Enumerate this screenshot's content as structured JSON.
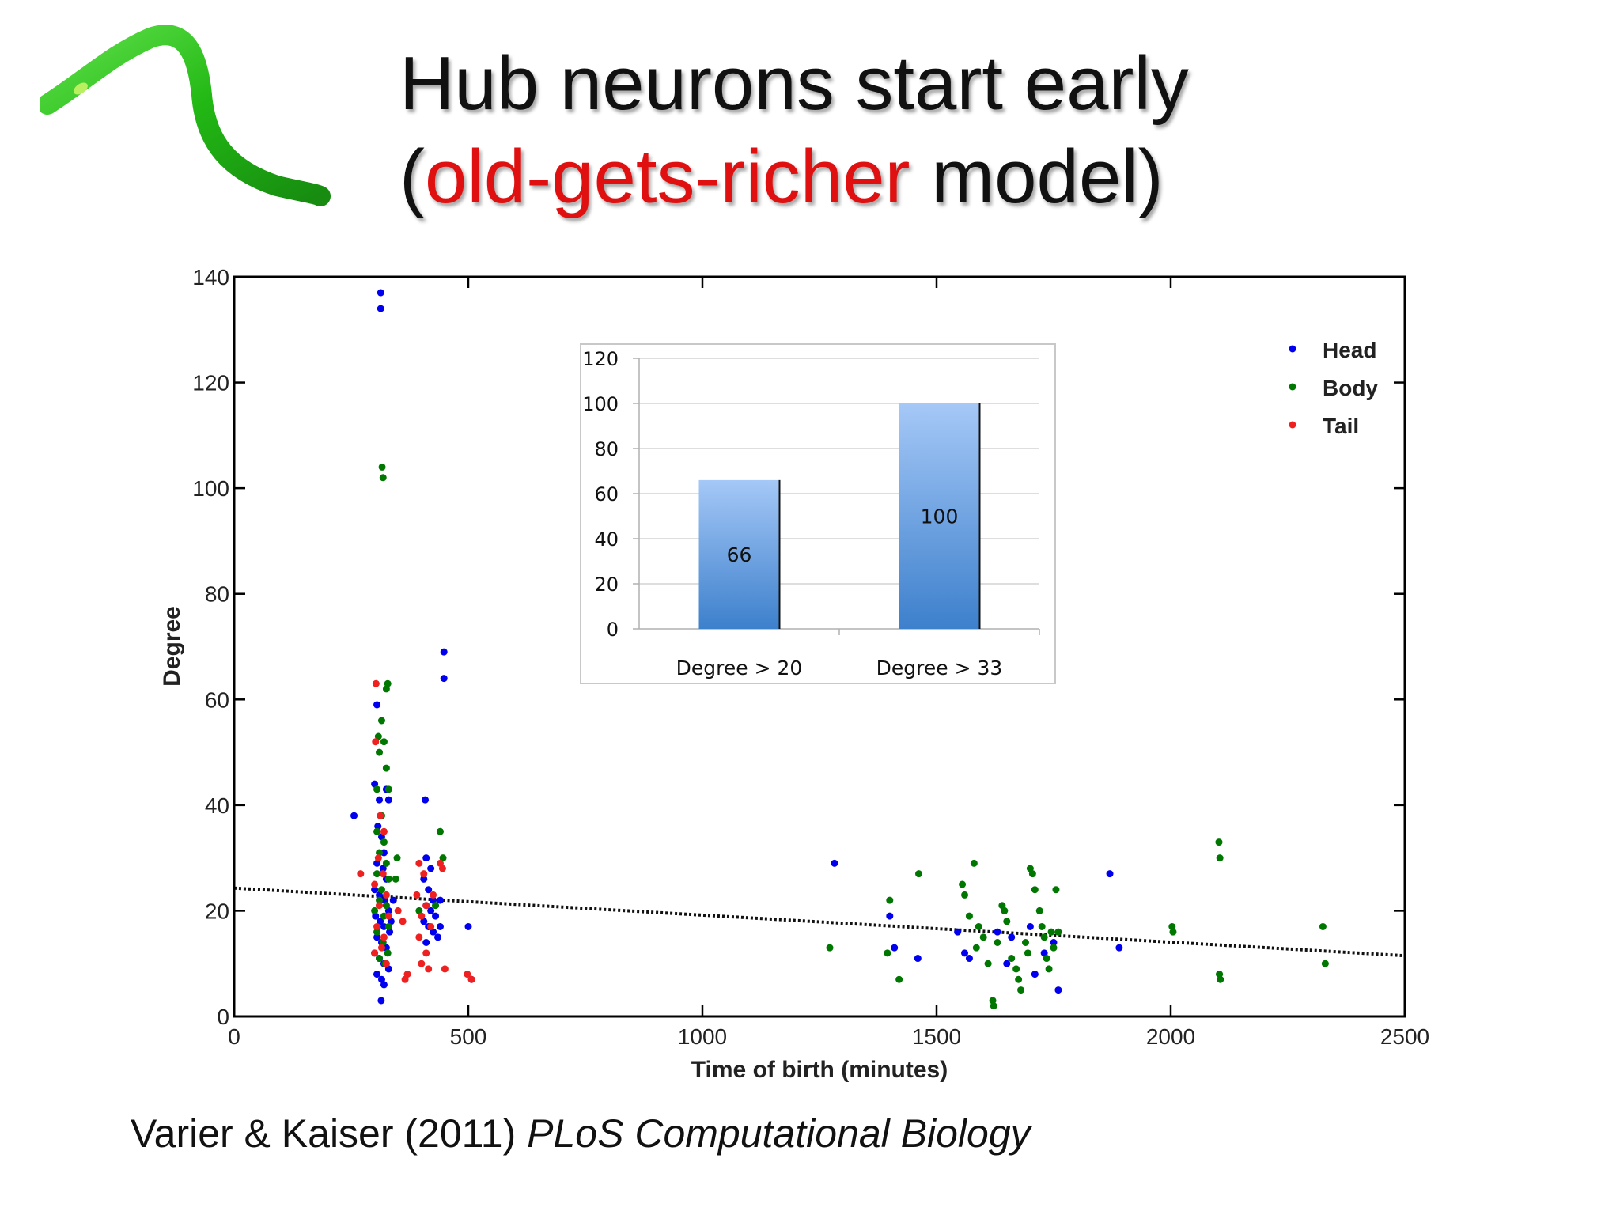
{
  "slide": {
    "title_line1": "Hub neurons start early",
    "title_line2_open": "(",
    "title_line2_highlight": "old-gets-richer",
    "title_line2_rest": " model)",
    "citation_authors": "Varier & Kaiser (2011) ",
    "citation_journal": "PLoS Computational Biology",
    "highlight_color": "#e01010"
  },
  "chart_data": [
    {
      "type": "scatter",
      "xlabel": "Time of birth (minutes)",
      "ylabel": "Degree",
      "xlim": [
        0,
        2500
      ],
      "ylim": [
        0,
        140
      ],
      "xticks": [
        0,
        500,
        1000,
        1500,
        2000,
        2500
      ],
      "yticks": [
        0,
        20,
        40,
        60,
        80,
        100,
        120,
        140
      ],
      "grid": false,
      "legend_position": "top-right",
      "trendline": {
        "style": "dotted",
        "x": [
          0,
          2500
        ],
        "y": [
          24.3,
          11.5
        ]
      },
      "series": [
        {
          "name": "Head",
          "color": "#0000ee",
          "points": [
            [
              313,
              137
            ],
            [
              313,
              134
            ],
            [
              256,
              38
            ],
            [
              305,
              59
            ],
            [
              300,
              44
            ],
            [
              310,
              41
            ],
            [
              325,
              43
            ],
            [
              330,
              41
            ],
            [
              307,
              36
            ],
            [
              315,
              34
            ],
            [
              320,
              31
            ],
            [
              305,
              29
            ],
            [
              318,
              28
            ],
            [
              325,
              26
            ],
            [
              300,
              24
            ],
            [
              310,
              23
            ],
            [
              322,
              22
            ],
            [
              330,
              20
            ],
            [
              302,
              19
            ],
            [
              312,
              18
            ],
            [
              320,
              17
            ],
            [
              332,
              16
            ],
            [
              305,
              15
            ],
            [
              315,
              14
            ],
            [
              325,
              13
            ],
            [
              300,
              12
            ],
            [
              310,
              11
            ],
            [
              320,
              10
            ],
            [
              330,
              9
            ],
            [
              305,
              8
            ],
            [
              315,
              7
            ],
            [
              320,
              6
            ],
            [
              314,
              3
            ],
            [
              340,
              22
            ],
            [
              335,
              18
            ],
            [
              408,
              41
            ],
            [
              448,
              69
            ],
            [
              448,
              64
            ],
            [
              410,
              30
            ],
            [
              420,
              28
            ],
            [
              405,
              26
            ],
            [
              415,
              24
            ],
            [
              425,
              22
            ],
            [
              410,
              21
            ],
            [
              420,
              20
            ],
            [
              430,
              19
            ],
            [
              405,
              18
            ],
            [
              415,
              17
            ],
            [
              425,
              16
            ],
            [
              435,
              15
            ],
            [
              410,
              14
            ],
            [
              440,
              17
            ],
            [
              440,
              22
            ],
            [
              500,
              17
            ],
            [
              507,
              7
            ],
            [
              1282,
              29
            ],
            [
              1400,
              19
            ],
            [
              1410,
              13
            ],
            [
              1460,
              11
            ],
            [
              1545,
              16
            ],
            [
              1560,
              12
            ],
            [
              1570,
              11
            ],
            [
              1630,
              16
            ],
            [
              1650,
              10
            ],
            [
              1660,
              15
            ],
            [
              1700,
              17
            ],
            [
              1710,
              8
            ],
            [
              1730,
              12
            ],
            [
              1750,
              14
            ],
            [
              1760,
              5
            ],
            [
              1870,
              27
            ],
            [
              1890,
              13
            ]
          ]
        },
        {
          "name": "Body",
          "color": "#007700",
          "points": [
            [
              316,
              104
            ],
            [
              318,
              102
            ],
            [
              328,
              63
            ],
            [
              325,
              62
            ],
            [
              315,
              56
            ],
            [
              308,
              53
            ],
            [
              320,
              52
            ],
            [
              310,
              50
            ],
            [
              325,
              47
            ],
            [
              305,
              43
            ],
            [
              330,
              43
            ],
            [
              315,
              38
            ],
            [
              305,
              35
            ],
            [
              320,
              33
            ],
            [
              310,
              31
            ],
            [
              325,
              29
            ],
            [
              305,
              27
            ],
            [
              330,
              26
            ],
            [
              315,
              24
            ],
            [
              310,
              22
            ],
            [
              325,
              21
            ],
            [
              300,
              20
            ],
            [
              320,
              19
            ],
            [
              330,
              17
            ],
            [
              305,
              16
            ],
            [
              318,
              14
            ],
            [
              328,
              12
            ],
            [
              310,
              11
            ],
            [
              322,
              10
            ],
            [
              348,
              30
            ],
            [
              345,
              26
            ],
            [
              440,
              35
            ],
            [
              446,
              30
            ],
            [
              395,
              20
            ],
            [
              430,
              21
            ],
            [
              1272,
              13
            ],
            [
              1395,
              12
            ],
            [
              1400,
              22
            ],
            [
              1420,
              7
            ],
            [
              1462,
              27
            ],
            [
              1555,
              25
            ],
            [
              1560,
              23
            ],
            [
              1570,
              19
            ],
            [
              1580,
              29
            ],
            [
              1585,
              13
            ],
            [
              1590,
              17
            ],
            [
              1600,
              15
            ],
            [
              1610,
              10
            ],
            [
              1620,
              3
            ],
            [
              1622,
              2
            ],
            [
              1630,
              14
            ],
            [
              1640,
              21
            ],
            [
              1645,
              20
            ],
            [
              1650,
              18
            ],
            [
              1660,
              11
            ],
            [
              1670,
              9
            ],
            [
              1675,
              7
            ],
            [
              1680,
              5
            ],
            [
              1690,
              14
            ],
            [
              1695,
              12
            ],
            [
              1700,
              28
            ],
            [
              1705,
              27
            ],
            [
              1710,
              24
            ],
            [
              1720,
              20
            ],
            [
              1725,
              17
            ],
            [
              1730,
              15
            ],
            [
              1735,
              11
            ],
            [
              1740,
              9
            ],
            [
              1745,
              16
            ],
            [
              1750,
              13
            ],
            [
              1755,
              24
            ],
            [
              1760,
              16
            ],
            [
              2003,
              17
            ],
            [
              2005,
              16
            ],
            [
              2103,
              33
            ],
            [
              2105,
              30
            ],
            [
              2104,
              8
            ],
            [
              2106,
              7
            ],
            [
              2325,
              17
            ],
            [
              2330,
              10
            ]
          ]
        },
        {
          "name": "Tail",
          "color": "#ee2020",
          "points": [
            [
              303,
              63
            ],
            [
              302,
              52
            ],
            [
              312,
              38
            ],
            [
              320,
              35
            ],
            [
              308,
              30
            ],
            [
              318,
              27
            ],
            [
              300,
              25
            ],
            [
              325,
              23
            ],
            [
              310,
              21
            ],
            [
              330,
              19
            ],
            [
              305,
              17
            ],
            [
              320,
              15
            ],
            [
              315,
              13
            ],
            [
              300,
              12
            ],
            [
              325,
              10
            ],
            [
              350,
              20
            ],
            [
              360,
              18
            ],
            [
              370,
              8
            ],
            [
              365,
              7
            ],
            [
              395,
              29
            ],
            [
              405,
              27
            ],
            [
              390,
              23
            ],
            [
              410,
              21
            ],
            [
              400,
              19
            ],
            [
              420,
              17
            ],
            [
              395,
              15
            ],
            [
              410,
              12
            ],
            [
              400,
              10
            ],
            [
              415,
              9
            ],
            [
              425,
              23
            ],
            [
              440,
              29
            ],
            [
              445,
              28
            ],
            [
              450,
              9
            ],
            [
              498,
              8
            ],
            [
              507,
              7
            ],
            [
              270,
              27
            ]
          ]
        }
      ]
    },
    {
      "type": "bar",
      "categories": [
        "Degree > 20",
        "Degree > 33"
      ],
      "values": [
        66,
        100
      ],
      "ylim": [
        0,
        120
      ],
      "yticks": [
        0,
        20,
        40,
        60,
        80,
        100,
        120
      ],
      "data_labels": [
        "66",
        "100"
      ],
      "grid": true
    }
  ]
}
